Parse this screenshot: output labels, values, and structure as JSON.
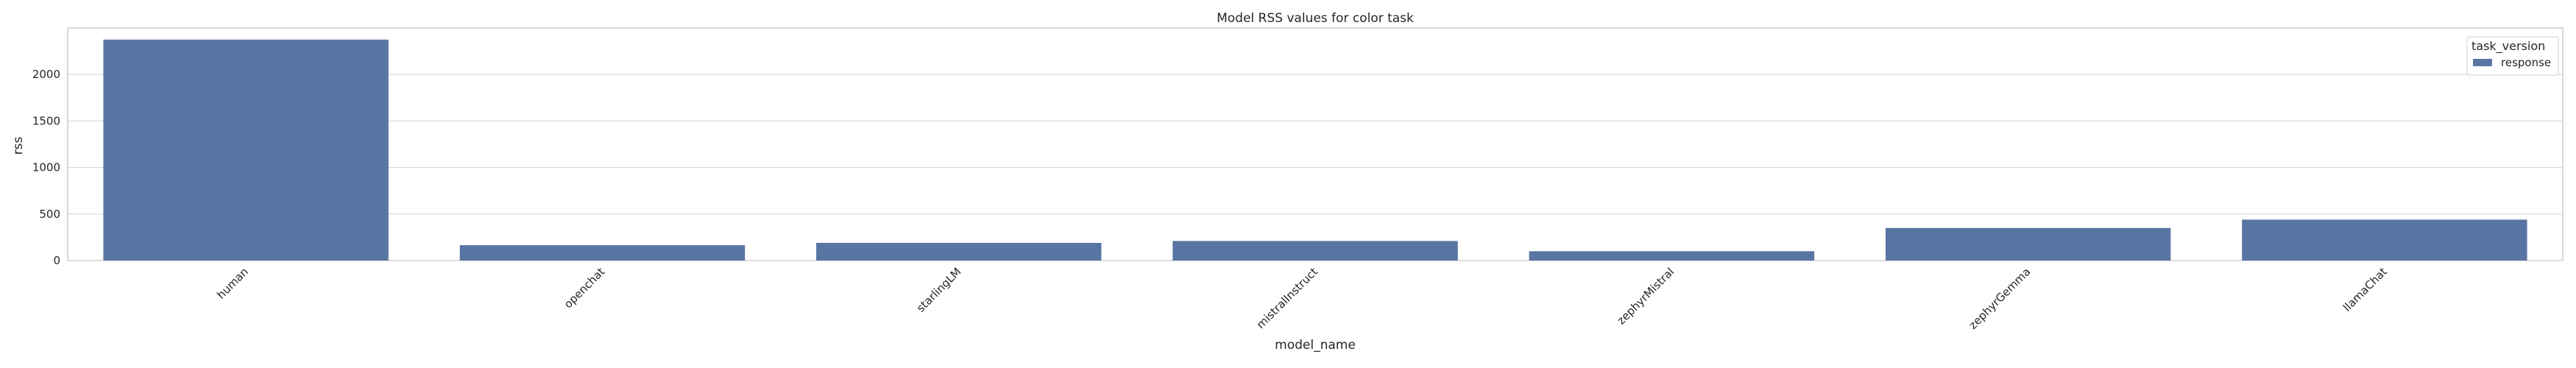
{
  "chart_data": {
    "type": "bar",
    "title": "Model RSS values for color task",
    "xlabel": "model_name",
    "ylabel": "rss",
    "categories": [
      "human",
      "openchat",
      "starlingLM",
      "mistralInstruct",
      "zephyrMistral",
      "zephyrGemma",
      "llamaChat"
    ],
    "series": [
      {
        "name": "response",
        "values": [
          2375,
          165,
          190,
          210,
          100,
          350,
          440
        ]
      }
    ],
    "ylim": [
      0,
      2500
    ],
    "yticks": [
      0,
      500,
      1000,
      1500,
      2000
    ],
    "grid": true,
    "legend": {
      "title": "task_version",
      "position": "top-right"
    },
    "colors": {
      "bar": "#5875a4",
      "grid": "#d9d9d9",
      "spine": "#cccccc"
    }
  }
}
